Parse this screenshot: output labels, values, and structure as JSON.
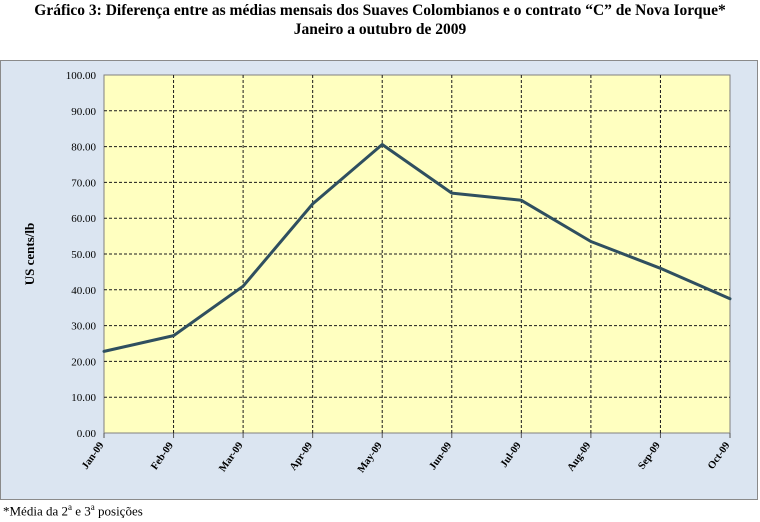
{
  "title_line1": "Gráfico 3:  Diferença entre as médias mensais dos Suaves Colombianos e o contrato “C” de Nova Iorque*",
  "title_line2": "Janeiro a outubro de 2009",
  "footnote": {
    "prefix": "*Média da 2",
    "sup1": "a",
    "middle": " e 3",
    "sup2": "a",
    "suffix": " posições"
  },
  "colors": {
    "plot_background": "#ffffc0",
    "chart_background": "#dbe5f1",
    "line": "#2f4f5f"
  },
  "chart_data": {
    "type": "line",
    "title": "",
    "xlabel": "",
    "ylabel": "US cents/lb",
    "categories": [
      "Jan-09",
      "Feb-09",
      "Mar-09",
      "Apr-09",
      "May-09",
      "Jun-09",
      "Jul-09",
      "Aug-09",
      "Sep-09",
      "Oct-09"
    ],
    "series": [
      {
        "values": [
          22.8,
          27.2,
          41.0,
          64.0,
          80.6,
          67.0,
          65.0,
          53.5,
          46.0,
          37.5
        ]
      }
    ],
    "yticks": [
      "0.00",
      "10.00",
      "20.00",
      "30.00",
      "40.00",
      "50.00",
      "60.00",
      "70.00",
      "80.00",
      "90.00",
      "100.00"
    ],
    "ylim": [
      0,
      100
    ],
    "grid": true,
    "legend": "none"
  }
}
